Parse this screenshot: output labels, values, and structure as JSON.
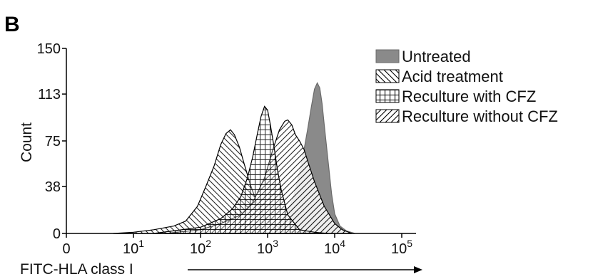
{
  "panel_label": "B",
  "chart_data": {
    "type": "area",
    "title": "",
    "xlabel": "FITC-HLA class I",
    "ylabel": "Count",
    "x_scale": "log",
    "xlim": [
      1,
      100000
    ],
    "ylim": [
      0,
      150
    ],
    "x_ticks": [
      {
        "base": "0",
        "exp": ""
      },
      {
        "base": "10",
        "exp": "1"
      },
      {
        "base": "10",
        "exp": "2"
      },
      {
        "base": "10",
        "exp": "3"
      },
      {
        "base": "10",
        "exp": "4"
      },
      {
        "base": "10",
        "exp": "5"
      }
    ],
    "y_ticks": [
      "0",
      "38",
      "75",
      "113",
      "150"
    ],
    "y_tick_values": [
      0,
      38,
      75,
      113,
      150
    ],
    "grid": false,
    "legend_position": "top-right",
    "series": [
      {
        "name": "Untreated",
        "fill": "solid-gray",
        "color": "#8a8a8a",
        "x": [
          300,
          1000,
          1500,
          2000,
          2500,
          3000,
          3500,
          4000,
          4500,
          5000,
          5500,
          6000,
          6500,
          7000,
          8000,
          9000,
          10000,
          12000,
          15000,
          20000
        ],
        "y": [
          0,
          3,
          8,
          18,
          32,
          50,
          68,
          86,
          103,
          117,
          122,
          118,
          105,
          88,
          58,
          32,
          16,
          6,
          2,
          0
        ]
      },
      {
        "name": "Acid treatment",
        "fill": "hatch-backslash",
        "color": "#000000",
        "x": [
          5,
          10,
          20,
          40,
          60,
          90,
          120,
          160,
          200,
          240,
          280,
          320,
          380,
          450,
          550,
          700,
          900,
          1200,
          2000,
          3000,
          5000
        ],
        "y": [
          0,
          1,
          3,
          6,
          10,
          22,
          38,
          55,
          72,
          81,
          84,
          80,
          70,
          56,
          40,
          24,
          14,
          7,
          2,
          1,
          0
        ]
      },
      {
        "name": "Reculture with CFZ",
        "fill": "hatch-grid",
        "color": "#000000",
        "x": [
          20,
          100,
          200,
          300,
          400,
          500,
          600,
          700,
          800,
          900,
          1000,
          1100,
          1250,
          1400,
          1600,
          2000,
          3000,
          5000,
          8000
        ],
        "y": [
          0,
          5,
          12,
          20,
          30,
          45,
          62,
          80,
          95,
          103,
          100,
          88,
          70,
          52,
          35,
          15,
          3,
          1,
          0
        ]
      },
      {
        "name": "Reculture without CFZ",
        "fill": "hatch-slash",
        "color": "#000000",
        "x": [
          30,
          100,
          200,
          400,
          600,
          900,
          1200,
          1500,
          1800,
          2000,
          2300,
          2600,
          3000,
          3500,
          4000,
          5000,
          7000,
          10000,
          13000,
          18000
        ],
        "y": [
          0,
          3,
          8,
          15,
          25,
          45,
          68,
          84,
          91,
          92,
          88,
          80,
          75,
          68,
          58,
          42,
          22,
          8,
          3,
          0
        ]
      }
    ]
  }
}
